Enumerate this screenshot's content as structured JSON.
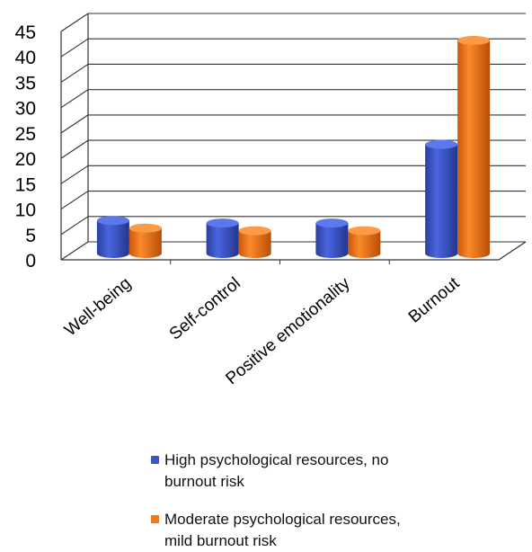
{
  "chart_data": {
    "type": "bar",
    "style": "3d-cylinder",
    "categories": [
      "Well-being",
      "Self-control",
      "Positive emotionality",
      "Burnout"
    ],
    "series": [
      {
        "name": "High psychological resources, no burnout risk",
        "color": "#3a55c8",
        "values": [
          6.5,
          6,
          6,
          21.5
        ]
      },
      {
        "name": "Moderate psychological resources, mild burnout risk",
        "color": "#f0791c",
        "values": [
          5,
          4.5,
          4.5,
          42
        ]
      }
    ],
    "ylim": [
      0,
      45
    ],
    "yticks": [
      "0",
      "5",
      "10",
      "15",
      "20",
      "25",
      "30",
      "35",
      "40",
      "45"
    ],
    "grid": true,
    "legend_position": "bottom"
  }
}
